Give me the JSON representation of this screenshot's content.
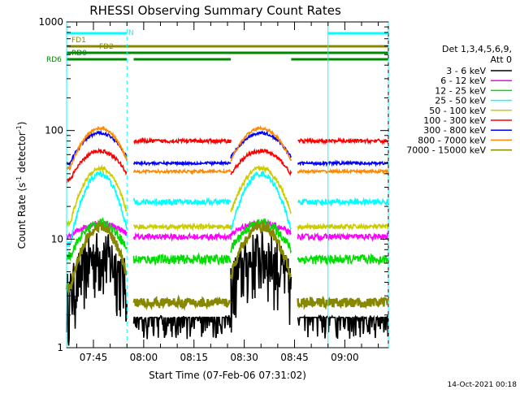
{
  "chart_data": {
    "type": "line",
    "title": "RHESSI Observing Summary Count Rates",
    "xlabel": "Start Time (07-Feb-06 07:31:02)",
    "ylabel": "Count Rate (s",
    "ylabel_sup": "-1",
    "ylabel_tail": " detector",
    "ylabel_end": ")",
    "yscale": "log",
    "ylim": [
      1,
      1000
    ],
    "xlim_minutes": [
      457,
      553
    ],
    "y_ticks": [
      {
        "value": 1,
        "label": "1"
      },
      {
        "value": 10,
        "label": "10"
      },
      {
        "value": 100,
        "label": "100"
      },
      {
        "value": 1000,
        "label": "1000"
      }
    ],
    "x_ticks": [
      {
        "minute": 465,
        "label": "07:45"
      },
      {
        "minute": 480,
        "label": "08:00"
      },
      {
        "minute": 495,
        "label": "08:15"
      },
      {
        "minute": 510,
        "label": "08:30"
      },
      {
        "minute": 525,
        "label": "08:45"
      },
      {
        "minute": 540,
        "label": "09:00"
      }
    ],
    "legend": {
      "header1": "Det 1,3,4,5,6,9,",
      "header2": "Att 0",
      "position": "right"
    },
    "series": [
      {
        "name": "3 - 6 keV",
        "color": "#000000",
        "noise": 1.2,
        "base": 2.5,
        "peak": 6,
        "night": 1.0
      },
      {
        "name": "6 - 12 keV",
        "color": "#ff00ff",
        "noise": 0.06,
        "base": 10.5,
        "peak": 14,
        "night": 10.5
      },
      {
        "name": "12 - 25 keV",
        "color": "#00dd00",
        "noise": 0.1,
        "base": 7,
        "peak": 14,
        "night": 6.5
      },
      {
        "name": "25 - 50 keV",
        "color": "#00ffff",
        "noise": 0.06,
        "base": 9,
        "peak": 40,
        "night": 22
      },
      {
        "name": "50 - 100 keV",
        "color": "#cccc00",
        "noise": 0.05,
        "base": 14,
        "peak": 45,
        "night": 13
      },
      {
        "name": "100 - 300 keV",
        "color": "#ff0000",
        "noise": 0.04,
        "base": 35,
        "peak": 65,
        "night": 80
      },
      {
        "name": "300 - 800 keV",
        "color": "#0000ff",
        "noise": 0.03,
        "base": 50,
        "peak": 95,
        "night": 50
      },
      {
        "name": "800 - 7000 keV",
        "color": "#ff8800",
        "noise": 0.03,
        "base": 45,
        "peak": 105,
        "night": 42
      },
      {
        "name": "7000 - 15000 keV",
        "color": "#888800",
        "noise": 0.1,
        "base": 3.5,
        "peak": 13,
        "night": 2.6
      }
    ],
    "day_segments": [
      {
        "start": 457,
        "end": 475
      },
      {
        "start": 485,
        "end": 523
      },
      {
        "start": 526,
        "end": 553
      }
    ],
    "night_segments": [
      {
        "start": 457,
        "end": 475
      },
      {
        "start": 477,
        "end": 485
      },
      {
        "start": 506,
        "end": 524
      },
      {
        "start": 546,
        "end": 553
      }
    ],
    "flags": [
      {
        "label": "N",
        "color": "#00ffff",
        "segments": [
          {
            "start": 457,
            "end": 475
          },
          {
            "start": 535,
            "end": 553
          }
        ]
      },
      {
        "label": "FD1",
        "color": "#888800",
        "segments": []
      },
      {
        "label": "FD2",
        "color": "#888800",
        "segments": [
          {
            "start": 457,
            "end": 553
          }
        ]
      },
      {
        "label": "RD0",
        "color": "#008800",
        "segments": [
          {
            "start": 457,
            "end": 553
          }
        ]
      },
      {
        "label": "RD6",
        "color": "#008800",
        "segments": [
          {
            "start": 457,
            "end": 475
          },
          {
            "start": 477,
            "end": 506
          },
          {
            "start": 524,
            "end": 553
          }
        ]
      }
    ],
    "saa_lines": [
      {
        "minute": 457,
        "style": "solid"
      },
      {
        "minute": 475,
        "style": "dashed"
      },
      {
        "minute": 535,
        "style": "solid"
      },
      {
        "minute": 553,
        "style": "dashed"
      }
    ]
  },
  "footer": {
    "timestamp": "14-Oct-2021 00:18"
  }
}
